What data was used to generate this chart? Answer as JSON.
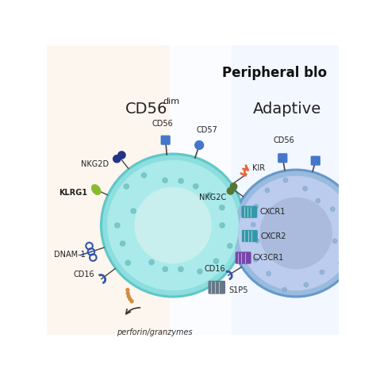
{
  "title": "Peripheral blo",
  "subtitle_left_main": "CD56",
  "subtitle_left_super": "dim",
  "subtitle_right": "Adaptive",
  "bg_left_color": "#fdf8f0",
  "bg_right_color": "#f5f8ff",
  "left_cell_border_color": "#5ec8c8",
  "left_cell_body_color": "#8ddede",
  "left_cell_inner_color": "#aaeaea",
  "left_nucleus_color": "#c8eeee",
  "right_cell_border_color": "#6699cc",
  "right_cell_body_color": "#99bbdd",
  "right_cell_inner_color": "#bbccee",
  "right_nucleus_color": "#aabbdd",
  "dot_color_left": "#70c0c0",
  "dot_color_right": "#88aace",
  "receptor_blue": "#4477cc",
  "receptor_teal": "#3399aa",
  "receptor_purple": "#7744aa",
  "receptor_gray": "#667788",
  "receptor_green": "#557733",
  "receptor_dnam": "#3355aa",
  "receptor_nkg2d": "#223388",
  "kir_color": "#ee6633",
  "perforin_color": "#cc8833",
  "arrow_color": "#333333"
}
